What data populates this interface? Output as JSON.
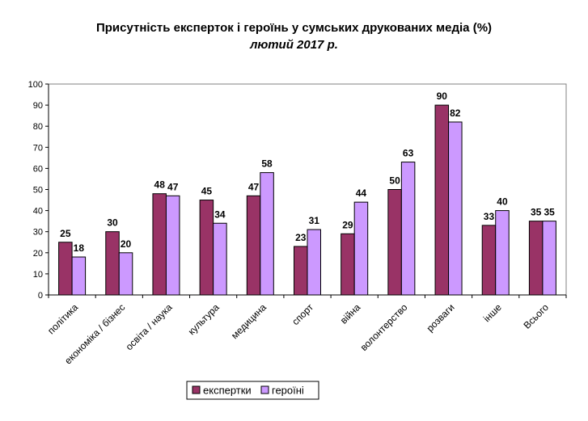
{
  "chart_data": {
    "type": "bar",
    "title": "Присутність експерток і героїнь у сумських друкованих медіа (%)",
    "subtitle": "лютий 2017 р.",
    "categories": [
      "політика",
      "економіка / бізнес",
      "освіта / наука",
      "культура",
      "медицина",
      "спорт",
      "війна",
      "волонтерство",
      "розваги",
      "інше",
      "Всього"
    ],
    "series": [
      {
        "name": "експертки",
        "color": "#993366",
        "values": [
          25,
          30,
          48,
          45,
          47,
          23,
          29,
          50,
          90,
          33,
          35
        ]
      },
      {
        "name": "героїні",
        "color": "#cc99ff",
        "values": [
          18,
          20,
          47,
          34,
          58,
          31,
          44,
          63,
          82,
          40,
          35
        ]
      }
    ],
    "ylim": [
      0,
      100
    ],
    "yticks": [
      0,
      10,
      20,
      30,
      40,
      50,
      60,
      70,
      80,
      90,
      100
    ],
    "grid": false,
    "legend": "bottom"
  }
}
